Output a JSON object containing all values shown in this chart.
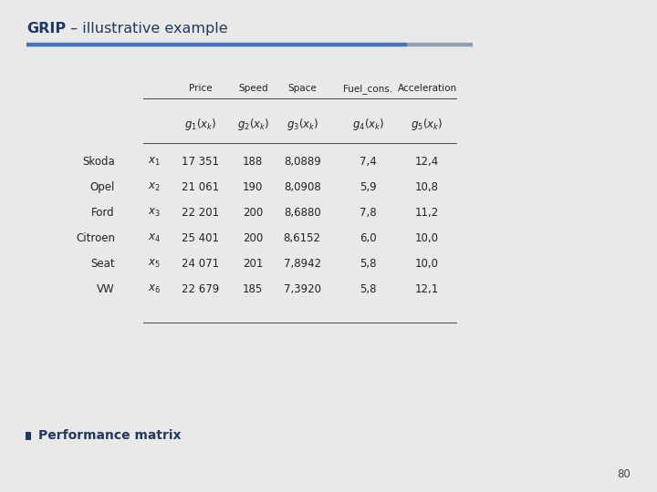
{
  "title_bold": "GRIP",
  "title_rest": " – illustrative example",
  "title_color": "#1F3864",
  "bg_color": "#E9E9E9",
  "accent_bar_color1": "#4472C4",
  "accent_bar_color2": "#8EA0B5",
  "col_headers": [
    "Price",
    "Speed",
    "Space",
    "Fuel_cons.",
    "Acceleration"
  ],
  "row_labels": [
    "Skoda",
    "Opel",
    "Ford",
    "Citroen",
    "Seat",
    "VW"
  ],
  "row_subscripts": [
    "1",
    "2",
    "3",
    "4",
    "5",
    "6"
  ],
  "data": [
    [
      "17 351",
      "188",
      "8,0889",
      "7,4",
      "12,4"
    ],
    [
      "21 061",
      "190",
      "8,0908",
      "5,9",
      "10,8"
    ],
    [
      "22 201",
      "200",
      "8,6880",
      "7,8",
      "11,2"
    ],
    [
      "25 401",
      "200",
      "8,6152",
      "6,0",
      "10,0"
    ],
    [
      "24 071",
      "201",
      "7,8942",
      "5,8",
      "10,0"
    ],
    [
      "22 679",
      "185",
      "7,3920",
      "5,8",
      "12,1"
    ]
  ],
  "bullet_text": "Performance matrix",
  "page_number": "80",
  "title_fontsize": 11.5,
  "header_fontsize": 7.5,
  "math_fontsize": 8.5,
  "data_fontsize": 8.5,
  "bullet_fontsize": 10
}
